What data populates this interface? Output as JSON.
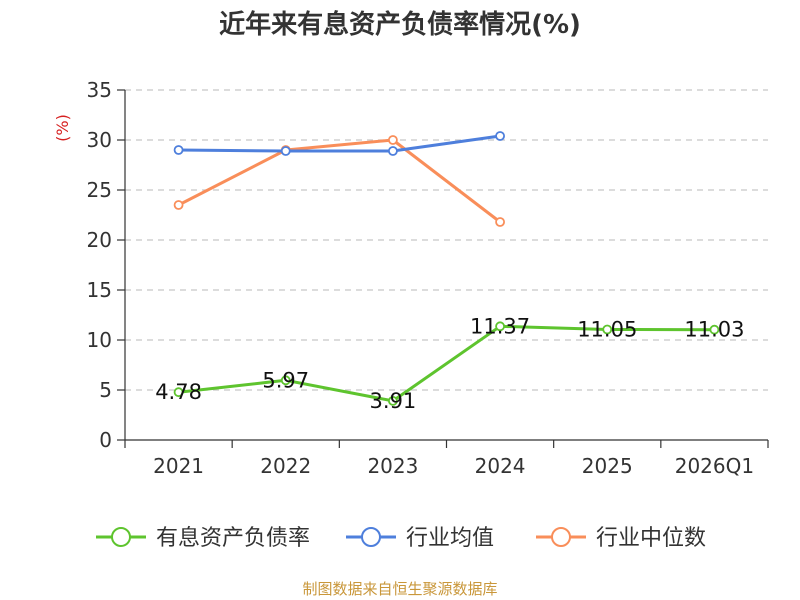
{
  "title": "近年来有息资产负债率情况(%)",
  "source": "制图数据来自恒生聚源数据库",
  "chart_data": {
    "type": "line",
    "title": "近年来有息资产负债率情况(%)",
    "xlabel": "",
    "ylabel": "(%)",
    "categories": [
      "2021",
      "2022",
      "2023",
      "2024",
      "2025",
      "2026Q1"
    ],
    "ylim": [
      0,
      35
    ],
    "yticks": [
      0,
      5,
      10,
      15,
      20,
      25,
      30,
      35
    ],
    "grid": true,
    "legend_position": "bottom",
    "series": [
      {
        "name": "有息资产负债率",
        "color": "#5ec42e",
        "values": [
          4.78,
          5.97,
          3.91,
          11.37,
          11.05,
          11.03
        ],
        "labels": [
          "4.78",
          "5.97",
          "3.91",
          "11.37",
          "11.05",
          "11.03"
        ]
      },
      {
        "name": "行业均值",
        "color": "#4e7fdc",
        "values": [
          29.0,
          28.9,
          28.9,
          30.4,
          null,
          null
        ]
      },
      {
        "name": "行业中位数",
        "color": "#f98e5a",
        "values": [
          23.5,
          29.0,
          30.0,
          21.8,
          null,
          null
        ]
      }
    ]
  }
}
